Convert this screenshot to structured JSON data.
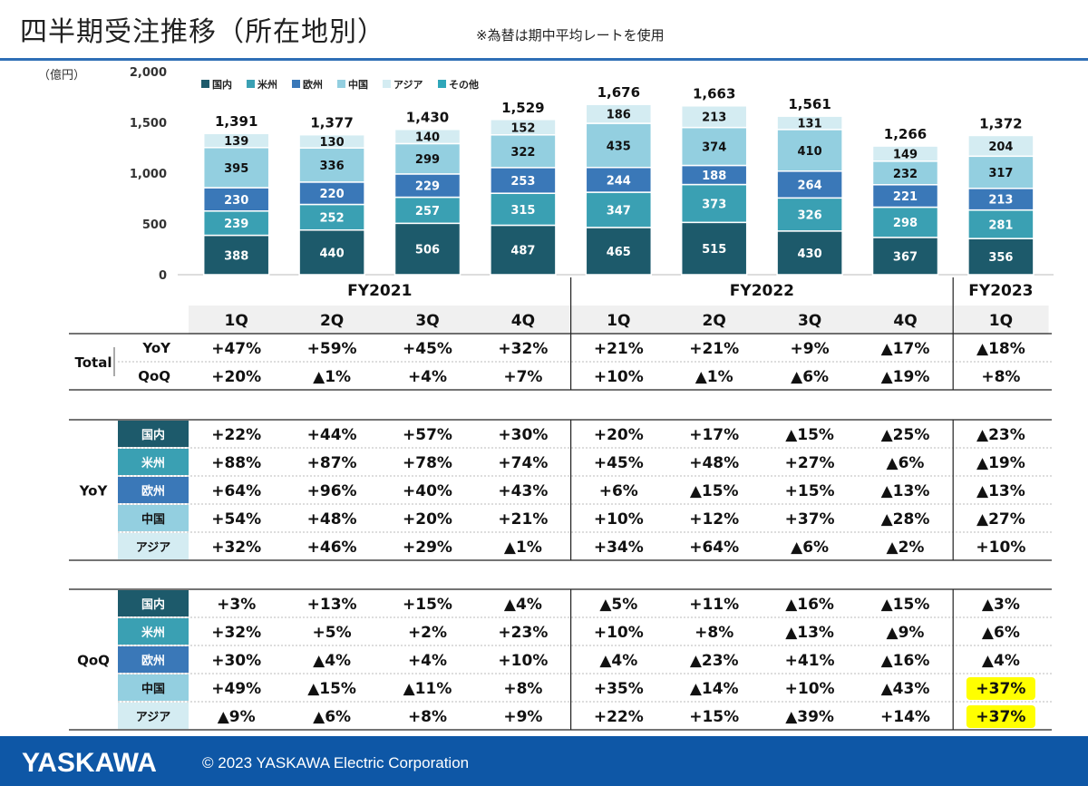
{
  "header": {
    "title": "四半期受注推移（所在地別）",
    "note": "※為替は期中平均レートを使用",
    "unit": "（億円）"
  },
  "colors": {
    "domestic": "#1d5a6b",
    "americas": "#3aa0b3",
    "europe": "#3a78b8",
    "china": "#93cfe0",
    "asia": "#d4ecf2",
    "other": "#2fa6b9",
    "header_band": "#f0f0f0",
    "highlight": "#ffff00",
    "footer": "#0e57a6"
  },
  "chart_data": {
    "type": "bar",
    "stacked": true,
    "categories": [
      "1Q",
      "2Q",
      "3Q",
      "4Q",
      "1Q",
      "2Q",
      "3Q",
      "4Q",
      "1Q"
    ],
    "fiscal_years": [
      {
        "label": "FY2021",
        "span": [
          0,
          3
        ]
      },
      {
        "label": "FY2022",
        "span": [
          4,
          7
        ]
      },
      {
        "label": "FY2023",
        "span": [
          8,
          8
        ]
      }
    ],
    "series": [
      {
        "name": "国内",
        "values": [
          388,
          440,
          506,
          487,
          465,
          515,
          430,
          367,
          356
        ]
      },
      {
        "name": "米州",
        "values": [
          239,
          252,
          257,
          315,
          347,
          373,
          326,
          298,
          281
        ]
      },
      {
        "name": "欧州",
        "values": [
          230,
          220,
          229,
          253,
          244,
          188,
          264,
          221,
          213
        ]
      },
      {
        "name": "中国",
        "values": [
          395,
          336,
          299,
          322,
          435,
          374,
          410,
          232,
          317
        ]
      },
      {
        "name": "アジア",
        "values": [
          139,
          130,
          140,
          152,
          186,
          213,
          131,
          149,
          204
        ]
      },
      {
        "name": "その他",
        "values": [
          0,
          0,
          0,
          0,
          0,
          0,
          0,
          0,
          0
        ]
      }
    ],
    "totals": [
      "1,391",
      "1,377",
      "1,430",
      "1,529",
      "1,676",
      "1,663",
      "1,561",
      "1,266",
      "1,372"
    ],
    "ylim": [
      0,
      2000
    ],
    "yticks": [
      "0",
      "500",
      "1,000",
      "1,500",
      "2,000"
    ],
    "legend_position": "top-left",
    "grid": false
  },
  "table": {
    "total": {
      "label": "Total",
      "rows": [
        {
          "label": "YoY",
          "values": [
            "+47%",
            "+59%",
            "+45%",
            "+32%",
            "+21%",
            "+21%",
            "+9%",
            "▲17%",
            "▲18%"
          ]
        },
        {
          "label": "QoQ",
          "values": [
            "+20%",
            "▲1%",
            "+4%",
            "+7%",
            "+10%",
            "▲1%",
            "▲6%",
            "▲19%",
            "+8%"
          ]
        }
      ]
    },
    "yoy": {
      "label": "YoY",
      "rows": [
        {
          "label": "国内",
          "values": [
            "+22%",
            "+44%",
            "+57%",
            "+30%",
            "+20%",
            "+17%",
            "▲15%",
            "▲25%",
            "▲23%"
          ]
        },
        {
          "label": "米州",
          "values": [
            "+88%",
            "+87%",
            "+78%",
            "+74%",
            "+45%",
            "+48%",
            "+27%",
            "▲6%",
            "▲19%"
          ]
        },
        {
          "label": "欧州",
          "values": [
            "+64%",
            "+96%",
            "+40%",
            "+43%",
            "+6%",
            "▲15%",
            "+15%",
            "▲13%",
            "▲13%"
          ]
        },
        {
          "label": "中国",
          "values": [
            "+54%",
            "+48%",
            "+20%",
            "+21%",
            "+10%",
            "+12%",
            "+37%",
            "▲28%",
            "▲27%"
          ]
        },
        {
          "label": "アジア",
          "values": [
            "+32%",
            "+46%",
            "+29%",
            "▲1%",
            "+34%",
            "+64%",
            "▲6%",
            "▲2%",
            "+10%"
          ]
        }
      ]
    },
    "qoq": {
      "label": "QoQ",
      "rows": [
        {
          "label": "国内",
          "values": [
            "+3%",
            "+13%",
            "+15%",
            "▲4%",
            "▲5%",
            "+11%",
            "▲16%",
            "▲15%",
            "▲3%"
          ]
        },
        {
          "label": "米州",
          "values": [
            "+32%",
            "+5%",
            "+2%",
            "+23%",
            "+10%",
            "+8%",
            "▲13%",
            "▲9%",
            "▲6%"
          ]
        },
        {
          "label": "欧州",
          "values": [
            "+30%",
            "▲4%",
            "+4%",
            "+10%",
            "▲4%",
            "▲23%",
            "+41%",
            "▲16%",
            "▲4%"
          ]
        },
        {
          "label": "中国",
          "values": [
            "+49%",
            "▲15%",
            "▲11%",
            "+8%",
            "+35%",
            "▲14%",
            "+10%",
            "▲43%",
            "+37%"
          ]
        },
        {
          "label": "アジア",
          "values": [
            "▲9%",
            "▲6%",
            "+8%",
            "+9%",
            "+22%",
            "+15%",
            "▲39%",
            "+14%",
            "+37%"
          ]
        }
      ]
    },
    "highlighted_cells": [
      [
        "qoq",
        3,
        8
      ],
      [
        "qoq",
        4,
        8
      ]
    ]
  },
  "footer": {
    "logo": "YASKAWA",
    "copyright": "© 2023 YASKAWA Electric Corporation"
  }
}
